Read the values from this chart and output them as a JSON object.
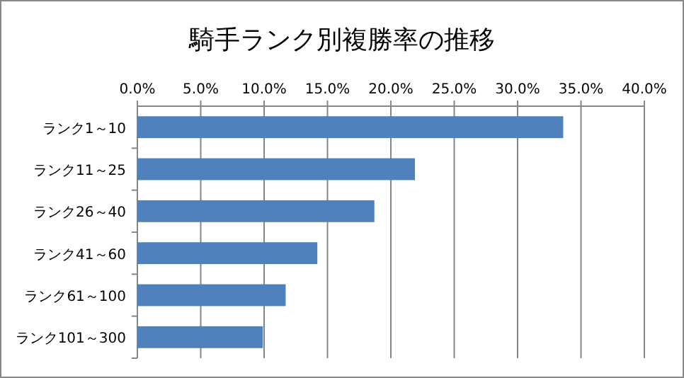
{
  "chart_data": {
    "type": "bar",
    "orientation": "horizontal",
    "title": "騎手ランク別複勝率の推移",
    "categories": [
      "ランク1～10",
      "ランク11～25",
      "ランク26～40",
      "ランク41～60",
      "ランク61～100",
      "ランク101～300"
    ],
    "values": [
      33.6,
      21.9,
      18.7,
      14.2,
      11.7,
      9.9
    ],
    "color": "#4f81bd",
    "xlim": [
      0,
      40
    ],
    "xticks": [
      {
        "value": 0,
        "label": "0.0%"
      },
      {
        "value": 5,
        "label": "5.0%"
      },
      {
        "value": 10,
        "label": "10.0%"
      },
      {
        "value": 15,
        "label": "15.0%"
      },
      {
        "value": 20,
        "label": "20.0%"
      },
      {
        "value": 25,
        "label": "25.0%"
      },
      {
        "value": 30,
        "label": "30.0%"
      },
      {
        "value": 35,
        "label": "35.0%"
      },
      {
        "value": 40,
        "label": "40.0%"
      }
    ],
    "grid": "x"
  }
}
